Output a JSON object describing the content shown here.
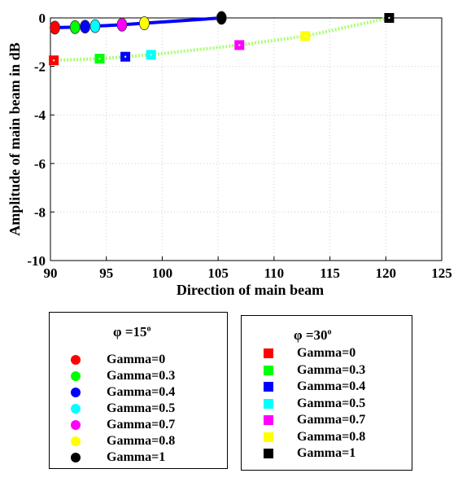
{
  "chart_data": {
    "type": "line",
    "title": "",
    "xlabel": "Direction of main beam",
    "ylabel": "Amplitude of main beam in dB",
    "xlim": [
      90,
      125
    ],
    "ylim": [
      -10,
      0
    ],
    "x_ticks": [
      "90",
      "95",
      "100",
      "105",
      "110",
      "115",
      "120",
      "125"
    ],
    "y_ticks": [
      "0",
      "-2",
      "-4",
      "-6",
      "-8",
      "-10"
    ],
    "grid": true,
    "series": [
      {
        "name": "φ =15°",
        "color": "#0000ff",
        "line_style": "solid",
        "marker": "circle",
        "points": [
          {
            "label": "Gamma=0",
            "x": 90.4,
            "y": -0.4,
            "color": "#ff0000"
          },
          {
            "label": "Gamma=0.3",
            "x": 92.2,
            "y": -0.38,
            "color": "#00ff00"
          },
          {
            "label": "Gamma=0.4",
            "x": 93.1,
            "y": -0.36,
            "color": "#0000ff"
          },
          {
            "label": "Gamma=0.5",
            "x": 94.0,
            "y": -0.34,
            "color": "#00ffff"
          },
          {
            "label": "Gamma=0.7",
            "x": 96.4,
            "y": -0.28,
            "color": "#ff00ff"
          },
          {
            "label": "Gamma=0.8",
            "x": 98.4,
            "y": -0.22,
            "color": "#ffff00"
          },
          {
            "label": "Gamma=1",
            "x": 105.3,
            "y": 0.0,
            "color": "#000000"
          }
        ]
      },
      {
        "name": "φ =30°",
        "color": "#a8ff70",
        "line_style": "dotted",
        "marker": "square",
        "points": [
          {
            "label": "Gamma=0",
            "x": 90.3,
            "y": -1.75,
            "color": "#ff0000"
          },
          {
            "label": "Gamma=0.3",
            "x": 94.4,
            "y": -1.68,
            "color": "#00ff00"
          },
          {
            "label": "Gamma=0.4",
            "x": 96.7,
            "y": -1.6,
            "color": "#0000ff"
          },
          {
            "label": "Gamma=0.5",
            "x": 99.0,
            "y": -1.52,
            "color": "#00ffff"
          },
          {
            "label": "Gamma=0.7",
            "x": 106.9,
            "y": -1.12,
            "color": "#ff00ff"
          },
          {
            "label": "Gamma=0.8",
            "x": 112.8,
            "y": -0.75,
            "color": "#ffff00"
          },
          {
            "label": "Gamma=1",
            "x": 120.3,
            "y": 0.0,
            "color": "#000000"
          }
        ]
      }
    ]
  },
  "legends": [
    {
      "title": "φ =15",
      "title_sup": "o",
      "marker": "circle",
      "entries": [
        {
          "label": "Gamma=0",
          "color": "#ff0000"
        },
        {
          "label": "Gamma=0.3",
          "color": "#00ff00"
        },
        {
          "label": "Gamma=0.4",
          "color": "#0000ff"
        },
        {
          "label": "Gamma=0.5",
          "color": "#00ffff"
        },
        {
          "label": "Gamma=0.7",
          "color": "#ff00ff"
        },
        {
          "label": "Gamma=0.8",
          "color": "#ffff00"
        },
        {
          "label": "Gamma=1",
          "color": "#000000"
        }
      ]
    },
    {
      "title": "φ =30",
      "title_sup": "o",
      "marker": "square",
      "entries": [
        {
          "label": "Gamma=0",
          "color": "#ff0000"
        },
        {
          "label": "Gamma=0.3",
          "color": "#00ff00"
        },
        {
          "label": "Gamma=0.4",
          "color": "#0000ff"
        },
        {
          "label": "Gamma=0.5",
          "color": "#00ffff"
        },
        {
          "label": "Gamma=0.7",
          "color": "#ff00ff"
        },
        {
          "label": "Gamma=0.8",
          "color": "#ffff00"
        },
        {
          "label": "Gamma=1",
          "color": "#000000"
        }
      ]
    }
  ]
}
